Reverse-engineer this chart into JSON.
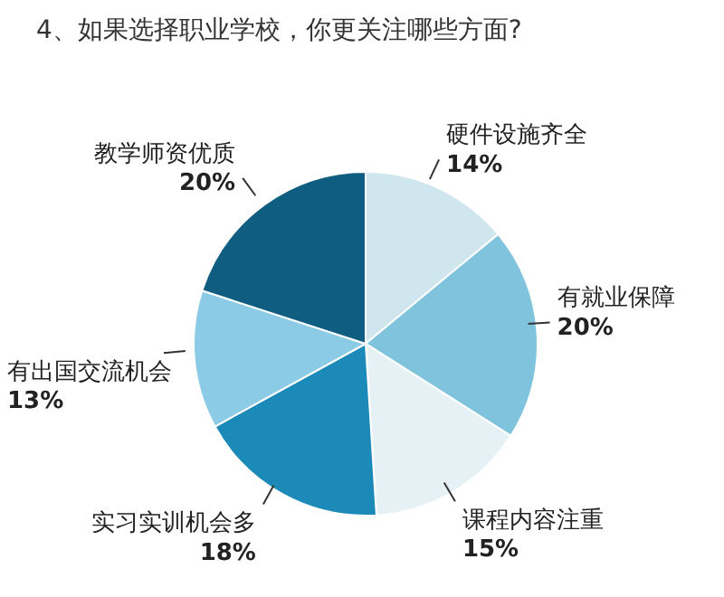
{
  "chart_data": {
    "type": "pie",
    "title": "4、如果选择职业学校，你更关注哪些方面?",
    "categories": [
      "硬件设施齐全",
      "有就业保障",
      "课程内容注重",
      "实习实训机会多",
      "有出国交流机会",
      "教学师资优质"
    ],
    "values": [
      14,
      20,
      15,
      18,
      13,
      20
    ],
    "value_labels": [
      "14%",
      "20%",
      "15%",
      "18%",
      "13%",
      "20%"
    ],
    "colors": [
      "#cfe6ef",
      "#7fc3dc",
      "#e6f1f5",
      "#1b8ab8",
      "#8ccbe6",
      "#0f5d80"
    ]
  }
}
